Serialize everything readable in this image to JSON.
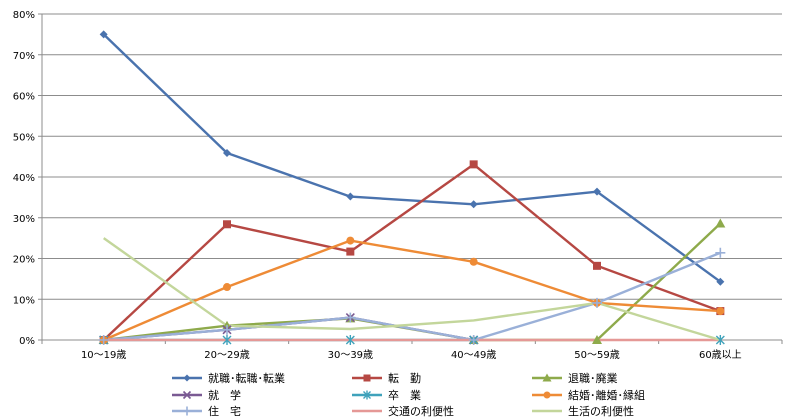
{
  "chart_data": {
    "type": "line",
    "categories": [
      "10〜19歳",
      "20〜29歳",
      "30〜39歳",
      "40〜49歳",
      "50〜59歳",
      "60歳以上"
    ],
    "ylim": [
      0,
      80
    ],
    "yticks": [
      0,
      10,
      20,
      30,
      40,
      50,
      60,
      70,
      80
    ],
    "ytick_labels": [
      "0%",
      "10%",
      "20%",
      "30%",
      "40%",
      "50%",
      "60%",
      "70%",
      "80%"
    ],
    "grid": true,
    "legend_position": "bottom",
    "series": [
      {
        "name": "就職･転職･転業",
        "color": "#4a73ae",
        "marker": "diamond",
        "values": [
          75.0,
          45.9,
          35.2,
          33.3,
          36.4,
          14.3
        ]
      },
      {
        "name": "転　勤",
        "color": "#b64843",
        "marker": "square",
        "values": [
          0,
          28.4,
          21.7,
          43.1,
          18.2,
          7.1
        ]
      },
      {
        "name": "退職･廃業",
        "color": "#8eaa4b",
        "marker": "triangle",
        "values": [
          0,
          3.5,
          5.3,
          0,
          0,
          28.6
        ]
      },
      {
        "name": "就　学",
        "color": "#7a5a93",
        "marker": "x",
        "values": [
          0,
          2.5,
          5.5,
          0,
          null,
          null
        ]
      },
      {
        "name": "卒　業",
        "color": "#3fa2bb",
        "marker": "star",
        "values": [
          0,
          0,
          0,
          0,
          null,
          0
        ]
      },
      {
        "name": "結婚･離婚･縁組",
        "color": "#ee8b36",
        "marker": "circle",
        "values": [
          0,
          13.0,
          24.4,
          19.2,
          9.1,
          7.1
        ]
      },
      {
        "name": "住　宅",
        "color": "#9ab0d8",
        "marker": "plus",
        "values": [
          0,
          2.5,
          5.5,
          0,
          9.1,
          21.4
        ]
      },
      {
        "name": "交通の利便性",
        "color": "#e59896",
        "marker": "none",
        "values": [
          0,
          0,
          0,
          0,
          0,
          0
        ]
      },
      {
        "name": "生活の利便性",
        "color": "#c3d69b",
        "marker": "none",
        "values": [
          25.0,
          3.5,
          2.7,
          4.8,
          9.1,
          0
        ]
      }
    ]
  }
}
